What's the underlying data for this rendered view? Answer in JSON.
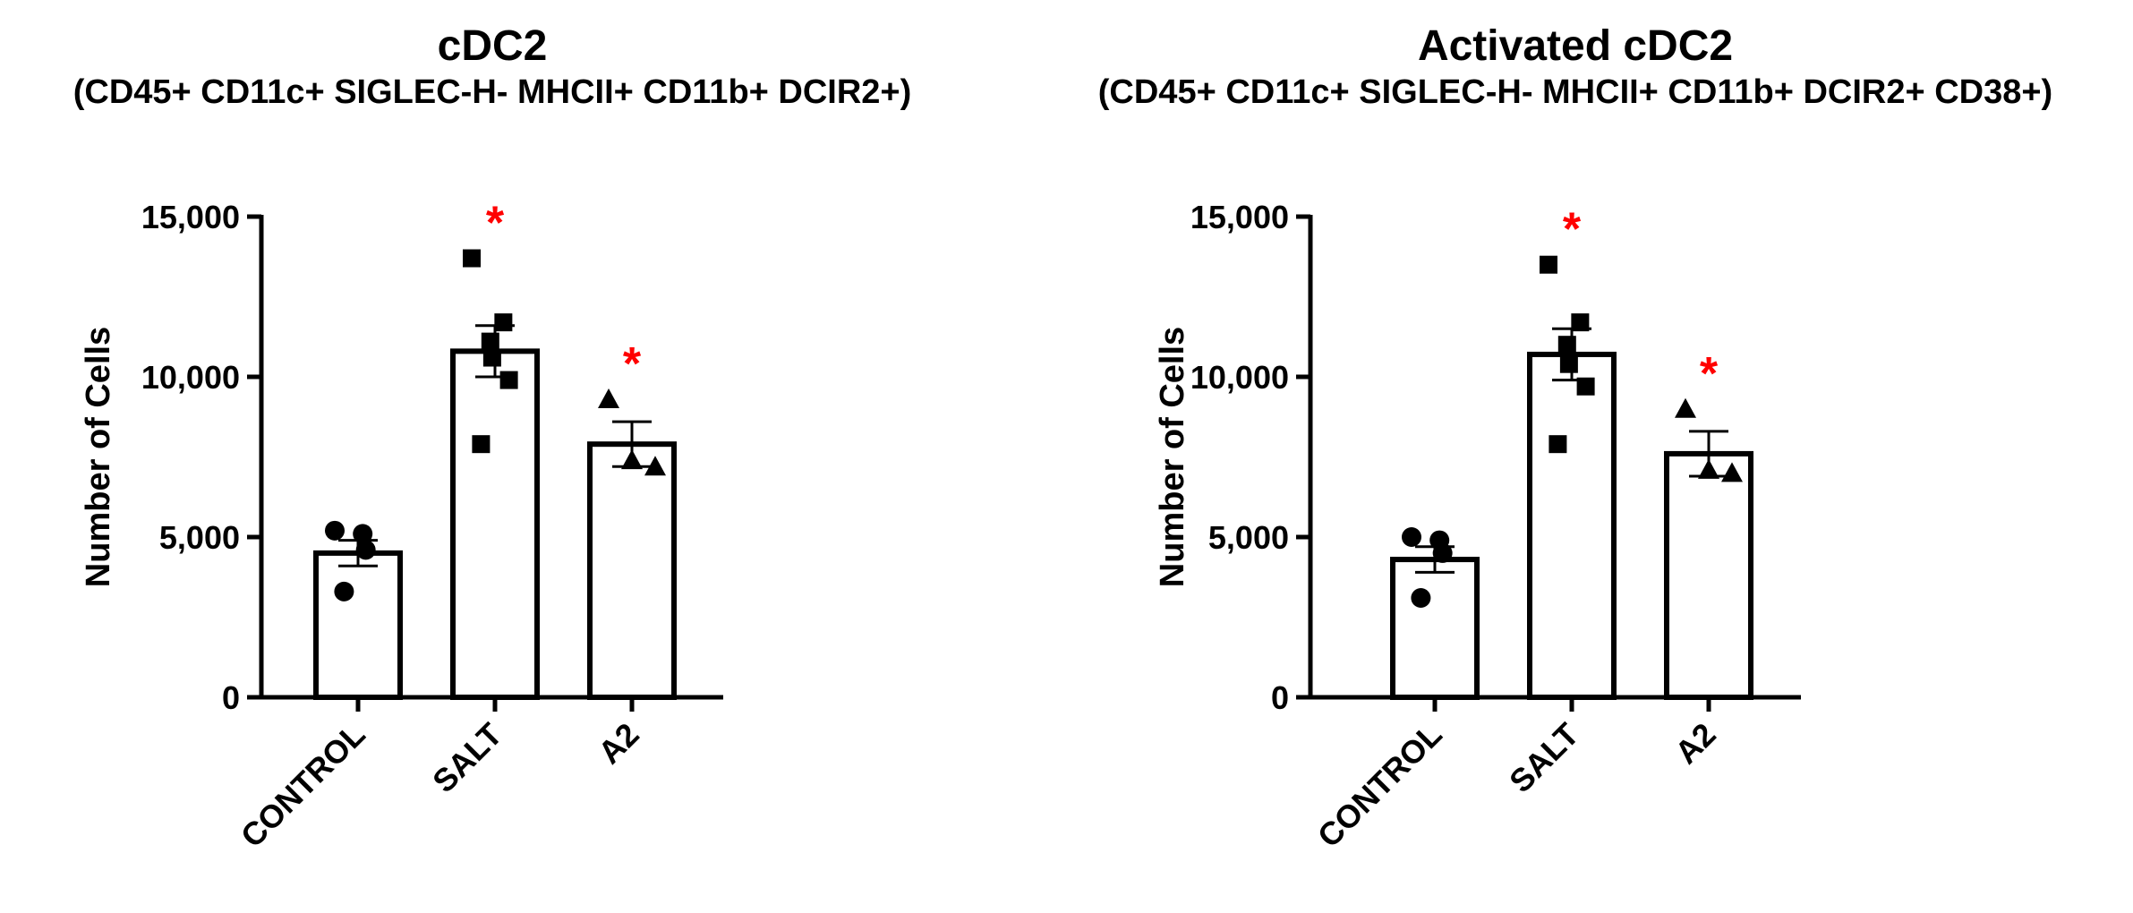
{
  "chart_data": [
    {
      "type": "bar",
      "title": "cDC2",
      "subtitle": "(CD45+ CD11c+ SIGLEC-H- MHCII+ CD11b+ DCIR2+)",
      "ylabel": "Number of  Cells",
      "xlabel": "",
      "ylim": [
        0,
        15000
      ],
      "yticks": [
        0,
        5000,
        10000,
        15000
      ],
      "ytick_labels": [
        "0",
        "5,000",
        "10,000",
        "15,000"
      ],
      "categories": [
        "CONTROL",
        "SALT",
        "A2"
      ],
      "values": [
        4500,
        10800,
        7900
      ],
      "sem": [
        400,
        800,
        700
      ],
      "markers": [
        "circle",
        "square",
        "triangle"
      ],
      "points": [
        [
          5200,
          5100,
          4600,
          3300
        ],
        [
          13700,
          11700,
          11100,
          10600,
          9900,
          7900
        ],
        [
          9300,
          7400,
          7200
        ]
      ],
      "significance": [
        "",
        "*",
        "*"
      ],
      "significance_color": "#ff0000"
    },
    {
      "type": "bar",
      "title": "Activated cDC2",
      "subtitle": "(CD45+ CD11c+ SIGLEC-H- MHCII+ CD11b+ DCIR2+ CD38+)",
      "ylabel": "Number of  Cells",
      "xlabel": "",
      "ylim": [
        0,
        15000
      ],
      "yticks": [
        0,
        5000,
        10000,
        15000
      ],
      "ytick_labels": [
        "0",
        "5,000",
        "10,000",
        "15,000"
      ],
      "categories": [
        "CONTROL",
        "SALT",
        "A2"
      ],
      "values": [
        4300,
        10700,
        7600
      ],
      "sem": [
        400,
        800,
        700
      ],
      "markers": [
        "circle",
        "square",
        "triangle"
      ],
      "points": [
        [
          5000,
          4900,
          4500,
          3100
        ],
        [
          13500,
          11700,
          11000,
          10400,
          9700,
          7900
        ],
        [
          9000,
          7100,
          7000
        ]
      ],
      "significance": [
        "",
        "*",
        "*"
      ],
      "significance_color": "#ff0000"
    }
  ]
}
